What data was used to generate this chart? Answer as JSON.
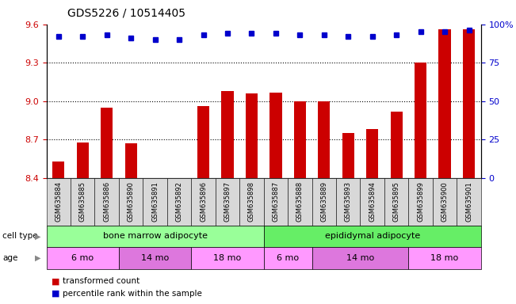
{
  "title": "GDS5226 / 10514405",
  "samples": [
    "GSM635884",
    "GSM635885",
    "GSM635886",
    "GSM635890",
    "GSM635891",
    "GSM635892",
    "GSM635896",
    "GSM635897",
    "GSM635898",
    "GSM635887",
    "GSM635888",
    "GSM635889",
    "GSM635893",
    "GSM635894",
    "GSM635895",
    "GSM635899",
    "GSM635900",
    "GSM635901"
  ],
  "bar_values": [
    8.53,
    8.68,
    8.95,
    8.67,
    8.38,
    8.4,
    8.96,
    9.08,
    9.06,
    9.07,
    9.0,
    9.0,
    8.75,
    8.78,
    8.92,
    9.3,
    9.56,
    9.56
  ],
  "dot_values": [
    92,
    92,
    93,
    91,
    90,
    90,
    93,
    94,
    94,
    94,
    93,
    93,
    92,
    92,
    93,
    95,
    95,
    96
  ],
  "bar_color": "#cc0000",
  "dot_color": "#0000cc",
  "ylim_left": [
    8.4,
    9.6
  ],
  "ylim_right": [
    0,
    100
  ],
  "yticks_left": [
    8.4,
    8.7,
    9.0,
    9.3,
    9.6
  ],
  "yticks_right": [
    0,
    25,
    50,
    75,
    100
  ],
  "grid_values": [
    8.7,
    9.0,
    9.3
  ],
  "cell_type_labels": [
    {
      "label": "bone marrow adipocyte",
      "start": 0,
      "end": 9,
      "color": "#99ff99"
    },
    {
      "label": "epididymal adipocyte",
      "start": 9,
      "end": 18,
      "color": "#66ee66"
    }
  ],
  "age_groups": [
    {
      "label": "6 mo",
      "start": 0,
      "end": 3,
      "color": "#ff99ff"
    },
    {
      "label": "14 mo",
      "start": 3,
      "end": 6,
      "color": "#dd77dd"
    },
    {
      "label": "18 mo",
      "start": 6,
      "end": 9,
      "color": "#ff99ff"
    },
    {
      "label": "6 mo",
      "start": 9,
      "end": 11,
      "color": "#ff99ff"
    },
    {
      "label": "14 mo",
      "start": 11,
      "end": 15,
      "color": "#dd77dd"
    },
    {
      "label": "18 mo",
      "start": 15,
      "end": 18,
      "color": "#ff99ff"
    }
  ],
  "legend_items": [
    {
      "label": "transformed count",
      "color": "#cc0000"
    },
    {
      "label": "percentile rank within the sample",
      "color": "#0000cc"
    }
  ],
  "cell_type_row_label": "cell type",
  "age_row_label": "age",
  "bg_color": "#ffffff"
}
